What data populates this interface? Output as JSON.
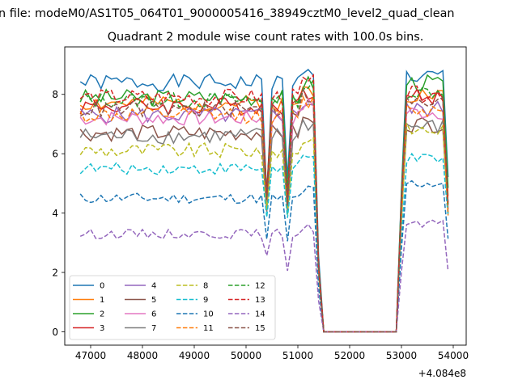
{
  "suptitle": "n file: modeM0/AS1T05_064T01_9000005416_38949cztM0_level2_quad_clean",
  "chart_data": {
    "type": "line",
    "title": "Quadrant 2 module wise count rates with 100.0s bins.",
    "offset_text": "+4.084e8",
    "xlim": [
      46500,
      54250
    ],
    "ylim": [
      -0.45,
      9.6
    ],
    "x_ticks": [
      47000,
      48000,
      49000,
      50000,
      51000,
      52000,
      53000,
      54000
    ],
    "x_tick_labels": [
      "47000",
      "48000",
      "49000",
      "50000",
      "51000",
      "52000",
      "53000",
      "54000"
    ],
    "y_ticks": [
      0,
      2,
      4,
      6,
      8
    ],
    "y_tick_labels": [
      "0",
      "2",
      "4",
      "6",
      "8"
    ],
    "legend_position": "lower-left",
    "x_start": 46800,
    "x_step": 100,
    "gap_range": [
      51500,
      52900
    ],
    "series": [
      {
        "name": "0",
        "color": "#1f77b4",
        "dash": "solid",
        "base": 8.4,
        "amp": 0.28,
        "dipA": 4.6,
        "dipB": 5.1,
        "postB": 8.7,
        "post": 8.6,
        "seed": 1
      },
      {
        "name": "1",
        "color": "#ff7f0e",
        "dash": "solid",
        "base": 7.7,
        "amp": 0.28,
        "dipA": 4.2,
        "dipB": 4.4,
        "postB": 8.1,
        "post": 8.0,
        "seed": 2
      },
      {
        "name": "2",
        "color": "#2ca02c",
        "dash": "solid",
        "base": 7.9,
        "amp": 0.28,
        "dipA": 4.8,
        "dipB": 4.6,
        "postB": 8.5,
        "post": 8.4,
        "seed": 3
      },
      {
        "name": "3",
        "color": "#d62728",
        "dash": "solid",
        "base": 7.6,
        "amp": 0.3,
        "dipA": 4.7,
        "dipB": 4.4,
        "postB": 7.9,
        "post": 7.9,
        "seed": 4
      },
      {
        "name": "4",
        "color": "#9467bd",
        "dash": "solid",
        "base": 7.3,
        "amp": 0.28,
        "dipA": 4.4,
        "dipB": 4.3,
        "postB": 7.6,
        "post": 7.5,
        "seed": 5
      },
      {
        "name": "5",
        "color": "#8c564b",
        "dash": "solid",
        "base": 6.7,
        "amp": 0.28,
        "dipA": 4.2,
        "dipB": 4.1,
        "postB": 7.1,
        "post": 7.0,
        "seed": 6
      },
      {
        "name": "6",
        "color": "#e377c2",
        "dash": "solid",
        "base": 7.2,
        "amp": 0.26,
        "dipA": 4.4,
        "dipB": 4.2,
        "postB": 7.5,
        "post": 7.4,
        "seed": 7
      },
      {
        "name": "7",
        "color": "#7f7f7f",
        "dash": "solid",
        "base": 6.6,
        "amp": 0.28,
        "dipA": 4.0,
        "dipB": 4.0,
        "postB": 7.0,
        "post": 6.9,
        "seed": 8
      },
      {
        "name": "8",
        "color": "#bcbd22",
        "dash": "dashed",
        "base": 6.1,
        "amp": 0.26,
        "dipA": 4.0,
        "dipB": 3.9,
        "postB": 6.8,
        "post": 6.8,
        "seed": 9
      },
      {
        "name": "9",
        "color": "#17becf",
        "dash": "dashed",
        "base": 5.5,
        "amp": 0.2,
        "dipA": 3.9,
        "dipB": 3.8,
        "postB": 5.8,
        "post": 5.8,
        "seed": 10
      },
      {
        "name": "10",
        "color": "#1f77b4",
        "dash": "dashed",
        "base": 4.5,
        "amp": 0.18,
        "dipA": 3.1,
        "dipB": 3.0,
        "postB": 5.1,
        "post": 5.0,
        "seed": 11
      },
      {
        "name": "11",
        "color": "#ff7f0e",
        "dash": "dashed",
        "base": 7.3,
        "amp": 0.28,
        "dipA": 4.4,
        "dipB": 4.2,
        "postB": 7.5,
        "post": 7.5,
        "seed": 12
      },
      {
        "name": "12",
        "color": "#2ca02c",
        "dash": "dashed",
        "base": 7.8,
        "amp": 0.26,
        "dipA": 4.6,
        "dipB": 4.5,
        "postB": 8.2,
        "post": 8.1,
        "seed": 13
      },
      {
        "name": "13",
        "color": "#d62728",
        "dash": "dashed",
        "base": 7.9,
        "amp": 0.28,
        "dipA": 4.5,
        "dipB": 4.5,
        "postB": 8.1,
        "post": 8.0,
        "seed": 14
      },
      {
        "name": "14",
        "color": "#9467bd",
        "dash": "dashed",
        "base": 3.3,
        "amp": 0.16,
        "dipA": 2.5,
        "dipB": 2.1,
        "postB": 3.7,
        "post": 3.6,
        "seed": 15
      },
      {
        "name": "15",
        "color": "#8c564b",
        "dash": "dashed",
        "base": 7.5,
        "amp": 0.28,
        "dipA": 4.5,
        "dipB": 4.3,
        "postB": 7.8,
        "post": 7.7,
        "seed": 16
      }
    ]
  }
}
